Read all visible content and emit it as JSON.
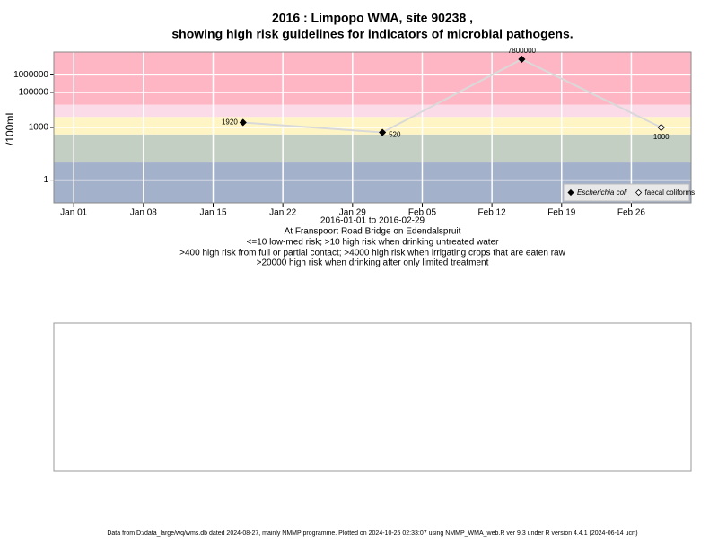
{
  "chart_data": {
    "type": "line",
    "title": "2016 : Limpopo WMA, site 90238 ,",
    "subtitle": "showing high risk guidelines for indicators of microbial pathogens.",
    "ylabel": "/100mL",
    "xlabel": "2016-01-01 to 2016-02-29",
    "site": "At Franspoort Road Bridge on Edendalspruit",
    "annotations": [
      "<=10 low-med risk; >10 high risk when drinking untreated water",
      ">400 high risk from full or partial contact; >4000 high risk when irrigating crops that are eaten raw",
      ">20000 high risk when drinking after only limited treatment"
    ],
    "footer": "Data from D:/data_large/wq/wms.db dated 2024-08-27, mainly NMMP programme. Plotted on 2024-10-25 02:33:07 using NMMP_WMA_web.R ver 9.3 under R version 4.4.1 (2024-06-14 ucrt)",
    "log_y": true,
    "x": [
      "2016-01-18",
      "2016-02-01",
      "2016-02-15",
      "2016-02-29"
    ],
    "series": [
      {
        "name": "Escherichia coli",
        "color": "#000000",
        "values": [
          1920,
          520,
          7800000,
          null
        ]
      },
      {
        "name": "faecal coliforms",
        "color": "#ffffff",
        "values": [
          null,
          null,
          null,
          1000
        ]
      }
    ],
    "line_color": "#d9d9d9",
    "bands": {
      "thresholds": [
        10,
        400,
        4000,
        20000
      ],
      "colors": [
        "#a3b1cb",
        "#c4cfc4",
        "#fff5c4",
        "#fcdbe8",
        "#ffb6c4"
      ]
    },
    "xlim": [
      "2015-12-30",
      "2016-03-03"
    ],
    "xticks": [
      {
        "value": "2016-01-01",
        "label": "Jan 01"
      },
      {
        "value": "2016-01-08",
        "label": "Jan 08"
      },
      {
        "value": "2016-01-15",
        "label": "Jan 15"
      },
      {
        "value": "2016-01-22",
        "label": "Jan 22"
      },
      {
        "value": "2016-01-29",
        "label": "Jan 29"
      },
      {
        "value": "2016-02-05",
        "label": "Feb 05"
      },
      {
        "value": "2016-02-12",
        "label": "Feb 12"
      },
      {
        "value": "2016-02-19",
        "label": "Feb 19"
      },
      {
        "value": "2016-02-26",
        "label": "Feb 26"
      }
    ],
    "ylim": [
      0.05,
      20000000
    ],
    "yticks": [
      1,
      1000,
      100000,
      1000000
    ],
    "grid": true,
    "legend": "bottom-right"
  }
}
